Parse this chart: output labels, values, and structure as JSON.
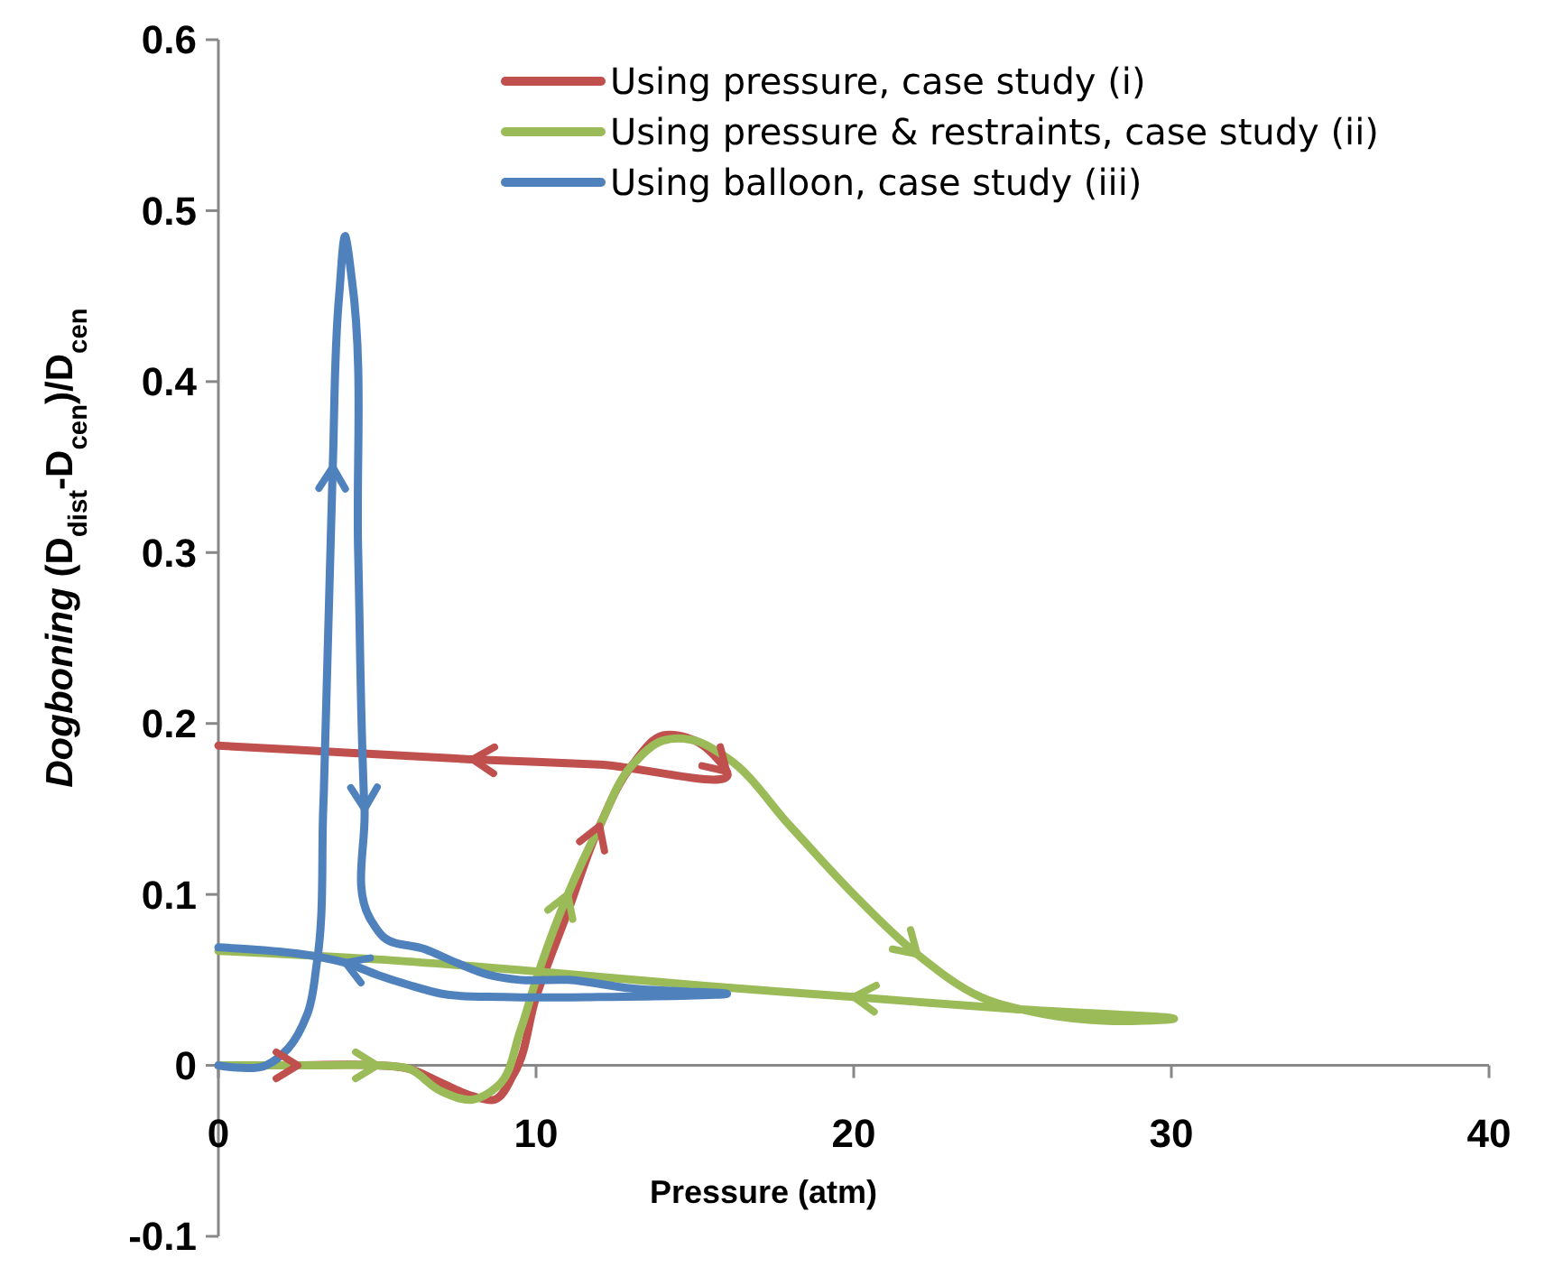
{
  "chart_data": {
    "type": "line",
    "xlabel": "Pressure (atm)",
    "ylabel": "Dogboning (D$_{dist}$-D$_{cen}$)/D$_{cen}$",
    "xlim": [
      0,
      40
    ],
    "xticks": [
      0,
      10,
      20,
      30,
      40
    ],
    "ylim": [
      -0.1,
      0.6
    ],
    "yticks": [
      -0.1,
      0,
      0.1,
      0.2,
      0.3,
      0.4,
      0.5,
      0.6
    ],
    "grid": false,
    "legend": "top right",
    "marker": "none",
    "line_style": "solid",
    "series": [
      {
        "name": "Using pressure, case study (i)",
        "color": "#c0504d",
        "x": [
          0,
          2.5,
          5,
          6,
          7,
          8,
          8.7,
          9.3,
          10,
          11,
          12,
          13,
          14,
          15,
          16,
          12,
          8,
          4,
          0
        ],
        "values": [
          0,
          0,
          0,
          -0.002,
          -0.01,
          -0.018,
          -0.02,
          -0.005,
          0.04,
          0.09,
          0.14,
          0.175,
          0.193,
          0.19,
          0.172,
          0.176,
          0.179,
          0.183,
          0.187
        ]
      },
      {
        "name": "Using pressure & restraints, case study (ii)",
        "color": "#9bbb59",
        "x": [
          0,
          3,
          5,
          6,
          7,
          8,
          8.8,
          9.5,
          10,
          11,
          12,
          13,
          14,
          15,
          16,
          18,
          20,
          22,
          24,
          26,
          28,
          30,
          25,
          20,
          15,
          10,
          5,
          0
        ],
        "values": [
          0,
          0,
          0,
          -0.002,
          -0.015,
          -0.02,
          -0.012,
          0.02,
          0.05,
          0.1,
          0.14,
          0.175,
          0.19,
          0.19,
          0.18,
          0.14,
          0.1,
          0.065,
          0.04,
          0.03,
          0.026,
          0.027,
          0.033,
          0.04,
          0.047,
          0.055,
          0.062,
          0.067
        ]
      },
      {
        "name": "Using balloon, case study (iii)",
        "color": "#4f81bd",
        "x": [
          0,
          1.5,
          2.2,
          2.8,
          3.1,
          3.3,
          3.6,
          3.8,
          4.0,
          4.2,
          4.4,
          4.6,
          4.8,
          5.2,
          6.5,
          7.5,
          8.5,
          9.5,
          11,
          13,
          16,
          12,
          9,
          7,
          6,
          5,
          4,
          3,
          0
        ],
        "values": [
          0,
          0,
          0.01,
          0.03,
          0.06,
          0.15,
          0.35,
          0.45,
          0.485,
          0.46,
          0.3,
          0.15,
          0.085,
          0.075,
          0.068,
          0.06,
          0.053,
          0.05,
          0.05,
          0.045,
          0.042,
          0.04,
          0.04,
          0.042,
          0.047,
          0.053,
          0.06,
          0.064,
          0.069
        ]
      }
    ]
  }
}
